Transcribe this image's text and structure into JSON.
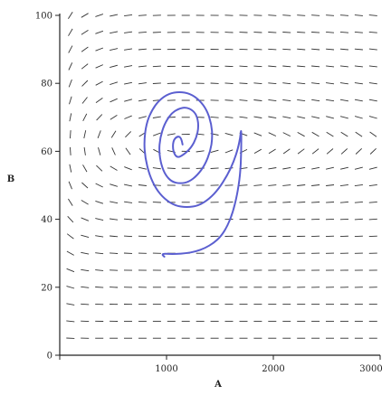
{
  "chart_data": {
    "type": "scatter",
    "title": "",
    "xlabel": "A",
    "ylabel": "B",
    "xlim": [
      0,
      3000
    ],
    "ylim": [
      0,
      100
    ],
    "xticks": [
      0,
      1000,
      2000,
      3000
    ],
    "yticks": [
      0,
      20,
      40,
      60,
      80,
      100
    ],
    "xtick_labels": [
      "1000",
      "2000",
      "3000"
    ],
    "ytick_labels": [
      "0",
      "20",
      "40",
      "60",
      "80",
      "100"
    ],
    "grid": false,
    "legend": "none",
    "field": {
      "description": "direction field (slope marks)",
      "x_start": 100,
      "x_step": 135,
      "x_count": 22,
      "y_start": 5,
      "y_step": 5,
      "y_count": 20,
      "x_eq": 1200,
      "y_eq": 62,
      "color": "#333333"
    },
    "series": [
      {
        "color": "#5b5fd0",
        "x": [
          1150,
          1140,
          1100,
          1060,
          1060,
          1100,
          1160,
          1230,
          1280,
          1300,
          1290,
          1250,
          1180,
          1110,
          1040,
          980,
          940,
          930,
          950,
          990,
          1050,
          1130,
          1210,
          1290,
          1360,
          1410,
          1430,
          1420,
          1380,
          1310,
          1220,
          1120,
          1020,
          930,
          860,
          810,
          790,
          800,
          840,
          900,
          980,
          1080,
          1190,
          1300,
          1400,
          1490,
          1570,
          1630,
          1670,
          1690,
          1700,
          1700,
          1690,
          1660,
          1620,
          1570,
          1510,
          1440,
          1360,
          1270,
          1180,
          1090,
          1020,
          970,
          960,
          980
        ],
        "y": [
          62,
          64,
          64.5,
          63,
          60,
          58,
          59,
          61,
          64,
          67,
          70,
          72,
          73,
          72.5,
          71,
          68,
          64,
          60,
          56,
          53,
          51,
          50.5,
          51,
          53,
          56,
          60,
          64,
          68,
          72,
          75,
          77,
          77.5,
          77,
          75,
          72,
          68,
          63,
          58,
          53,
          49,
          46,
          44,
          43.5,
          44,
          46,
          49,
          53,
          57,
          61,
          64,
          67,
          60,
          53,
          47,
          42,
          38,
          35,
          33,
          31.5,
          30.5,
          30,
          29.8,
          29.8,
          29.9,
          29.5,
          29
        ]
      }
    ]
  }
}
